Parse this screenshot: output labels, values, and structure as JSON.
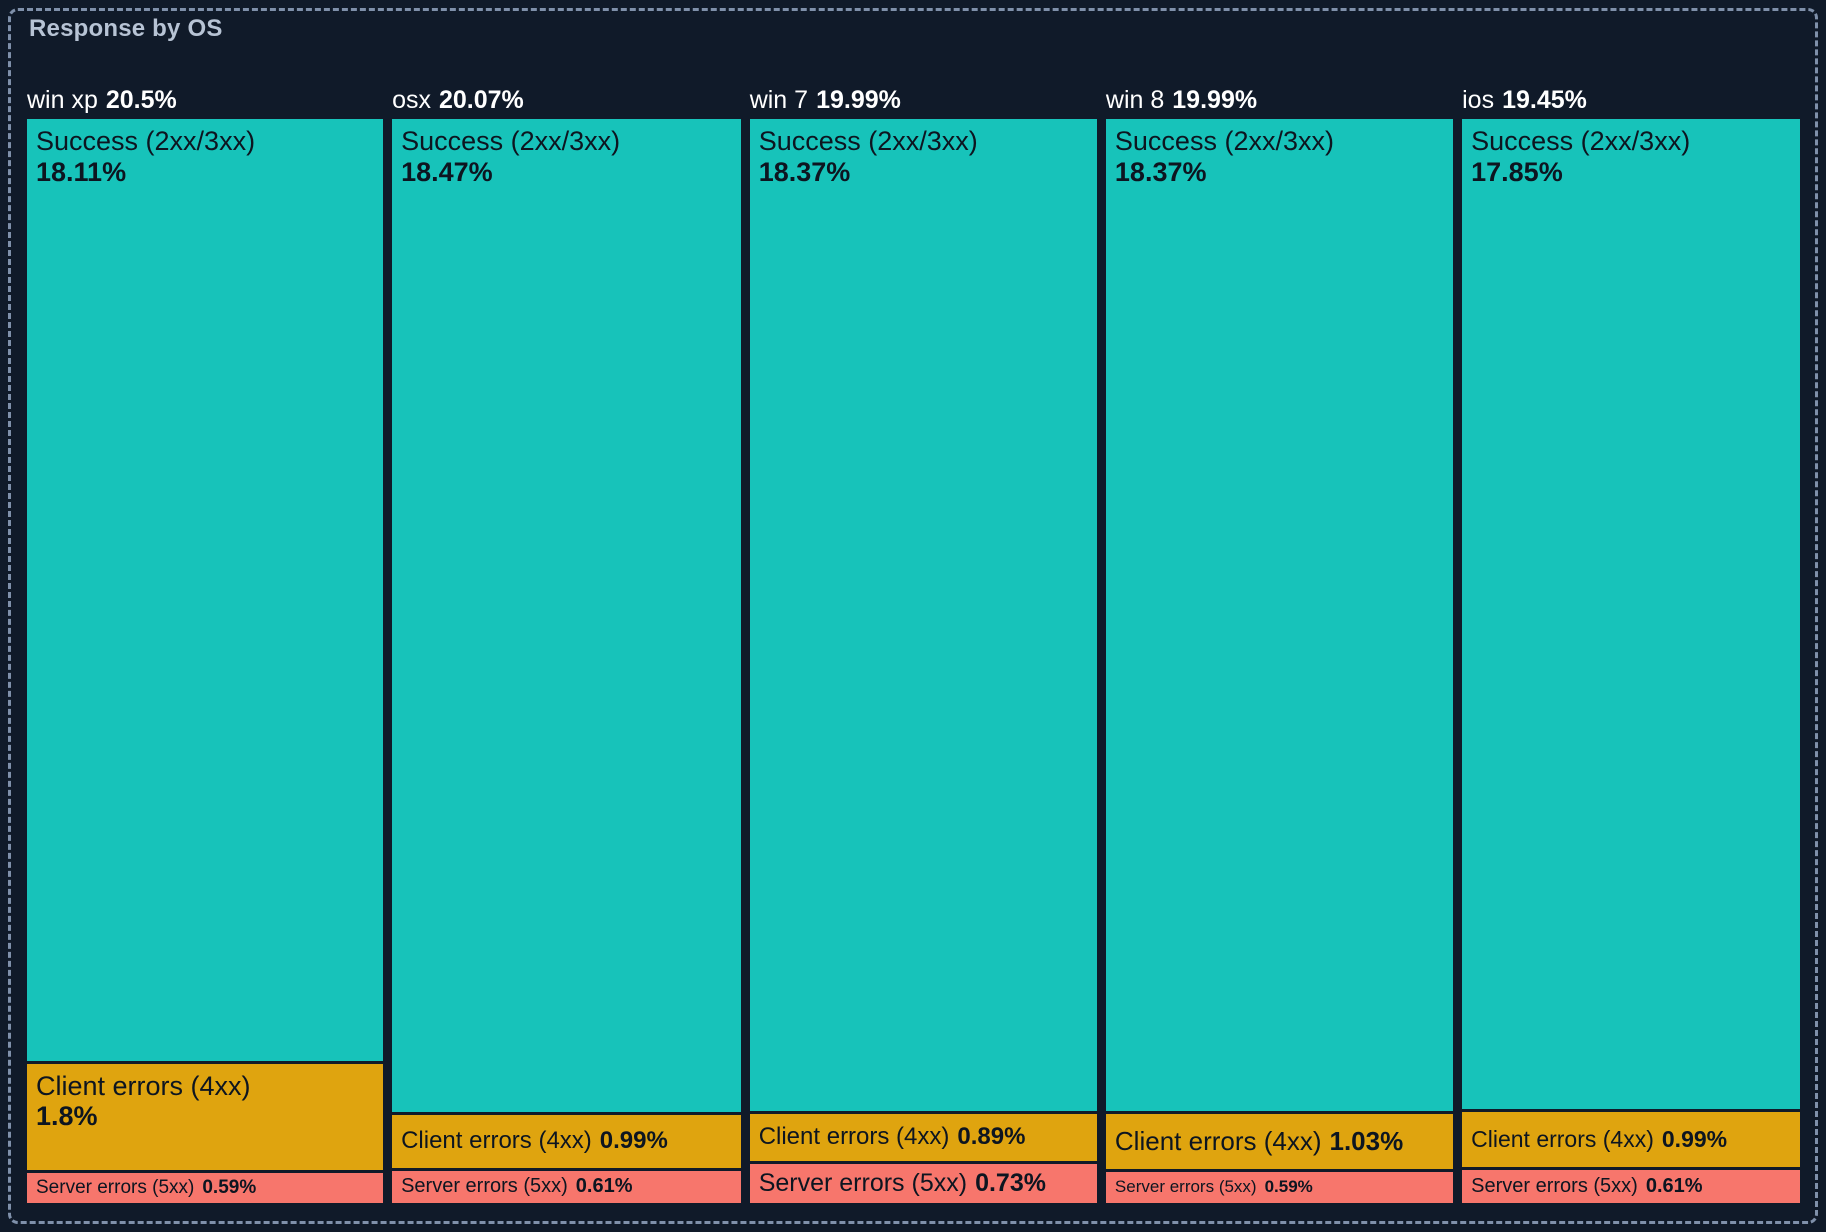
{
  "panel": {
    "background": "#101a29",
    "title_color": "#b7c3d4",
    "border_color": "#7f90aa",
    "header_color": "#ffffff",
    "label_color": "#0d1520"
  },
  "chart_data": {
    "type": "treemap",
    "title": "Response by OS",
    "legend": "none",
    "layout": "columns-by-os, segments-stacked-vertically, labels-top-left",
    "palette": {
      "success": "#17c3ba",
      "client": "#dfa40f",
      "server": "#f7766c"
    },
    "groups": [
      {
        "name": "win xp",
        "share": 20.5,
        "share_label": "20.5%",
        "segments": [
          {
            "kind": "success",
            "label": "Success (2xx/3xx)",
            "value": 18.11,
            "value_label": "18.11%",
            "lines": 2,
            "font_px": 27
          },
          {
            "kind": "client",
            "label": "Client errors (4xx)",
            "value": 1.8,
            "value_label": "1.8%",
            "lines": 2,
            "font_px": 27
          },
          {
            "kind": "server",
            "label": "Server errors (5xx)",
            "value": 0.59,
            "value_label": "0.59%",
            "lines": 1,
            "font_px": 19
          }
        ]
      },
      {
        "name": "osx",
        "share": 20.07,
        "share_label": "20.07%",
        "segments": [
          {
            "kind": "success",
            "label": "Success (2xx/3xx)",
            "value": 18.47,
            "value_label": "18.47%",
            "lines": 2,
            "font_px": 27
          },
          {
            "kind": "client",
            "label": "Client errors (4xx)",
            "value": 0.99,
            "value_label": "0.99%",
            "lines": 1,
            "font_px": 24
          },
          {
            "kind": "server",
            "label": "Server errors (5xx)",
            "value": 0.61,
            "value_label": "0.61%",
            "lines": 1,
            "font_px": 20
          }
        ]
      },
      {
        "name": "win 7",
        "share": 19.99,
        "share_label": "19.99%",
        "segments": [
          {
            "kind": "success",
            "label": "Success (2xx/3xx)",
            "value": 18.37,
            "value_label": "18.37%",
            "lines": 2,
            "font_px": 27
          },
          {
            "kind": "client",
            "label": "Client errors (4xx)",
            "value": 0.89,
            "value_label": "0.89%",
            "lines": 1,
            "font_px": 24
          },
          {
            "kind": "server",
            "label": "Server errors (5xx)",
            "value": 0.73,
            "value_label": "0.73%",
            "lines": 1,
            "font_px": 25
          }
        ]
      },
      {
        "name": "win 8",
        "share": 19.99,
        "share_label": "19.99%",
        "segments": [
          {
            "kind": "success",
            "label": "Success (2xx/3xx)",
            "value": 18.37,
            "value_label": "18.37%",
            "lines": 2,
            "font_px": 27
          },
          {
            "kind": "client",
            "label": "Client errors (4xx)",
            "value": 1.03,
            "value_label": "1.03%",
            "lines": 1,
            "font_px": 26
          },
          {
            "kind": "server",
            "label": "Server errors (5xx)",
            "value": 0.59,
            "value_label": "0.59%",
            "lines": 1,
            "font_px": 17
          }
        ]
      },
      {
        "name": "ios",
        "share": 19.45,
        "share_label": "19.45%",
        "segments": [
          {
            "kind": "success",
            "label": "Success (2xx/3xx)",
            "value": 17.85,
            "value_label": "17.85%",
            "lines": 2,
            "font_px": 27
          },
          {
            "kind": "client",
            "label": "Client errors (4xx)",
            "value": 0.99,
            "value_label": "0.99%",
            "lines": 1,
            "font_px": 23
          },
          {
            "kind": "server",
            "label": "Server errors (5xx)",
            "value": 0.61,
            "value_label": "0.61%",
            "lines": 1,
            "font_px": 20
          }
        ]
      }
    ]
  }
}
